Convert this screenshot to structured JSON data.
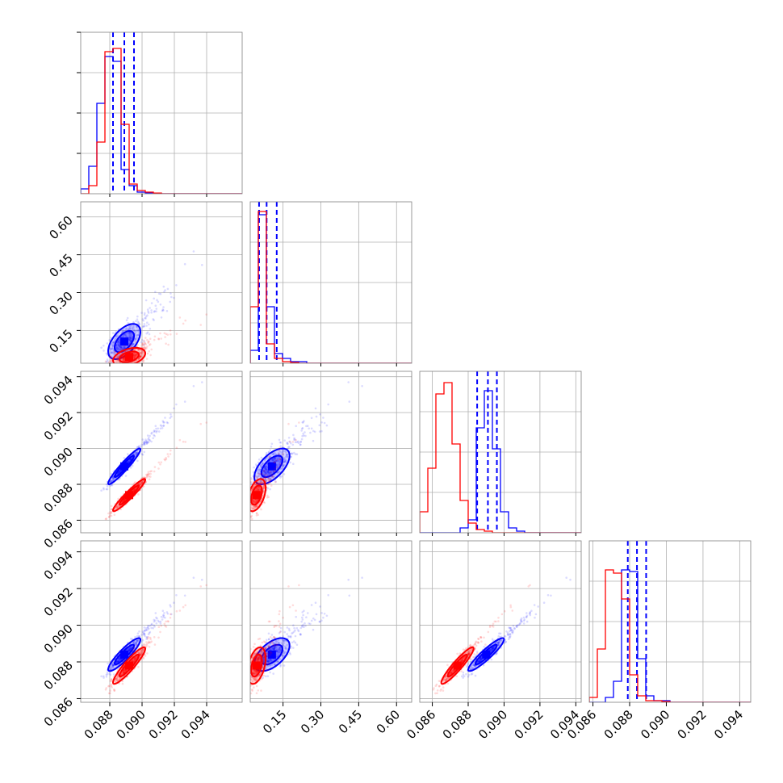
{
  "chart_data": {
    "type": "corner",
    "grid": true,
    "parameters": [
      {
        "index": 0,
        "range": [
          0.0862,
          0.0962
        ],
        "ticks": [
          "0.088",
          "0.090",
          "0.092",
          "0.094"
        ],
        "tick_values": [
          0.088,
          0.09,
          0.092,
          0.094
        ]
      },
      {
        "index": 1,
        "range": [
          0.02,
          0.66
        ],
        "ticks": [
          "0.15",
          "0.30",
          "0.45",
          "0.60"
        ],
        "tick_values": [
          0.15,
          0.3,
          0.45,
          0.6
        ]
      },
      {
        "index": 2,
        "range": [
          0.0853,
          0.0943
        ],
        "ticks": [
          "0.086",
          "0.088",
          "0.090",
          "0.092",
          "0.094"
        ],
        "tick_values": [
          0.086,
          0.088,
          0.09,
          0.092,
          0.094
        ]
      },
      {
        "index": 3,
        "range": [
          0.0858,
          0.0946
        ],
        "ticks": [
          "0.086",
          "0.088",
          "0.090",
          "0.092",
          "0.094"
        ],
        "tick_values": [
          0.086,
          0.088,
          0.09,
          0.092,
          0.094
        ]
      }
    ],
    "series": [
      {
        "color": "#0000ff",
        "means": [
          0.0889,
          0.106,
          0.089,
          0.0884
        ],
        "sds": [
          0.0005,
          0.035,
          0.0005,
          0.00045
        ],
        "corr": [
          [
            1,
            0.55,
            0.95,
            0.9
          ],
          [
            0.55,
            1,
            0.6,
            0.55
          ],
          [
            0.95,
            0.6,
            1,
            0.92
          ],
          [
            0.9,
            0.55,
            0.92,
            1
          ]
        ],
        "quantiles": [
          [
            0.0882,
            0.0889,
            0.0895
          ],
          [
            0.055,
            0.085,
            0.125
          ],
          [
            0.0885,
            0.0891,
            0.0896
          ],
          [
            0.0879,
            0.0884,
            0.0889
          ]
        ],
        "histograms": [
          [
            0.03,
            0.17,
            0.56,
            0.85,
            0.82,
            0.15,
            0.05,
            0.01,
            0.005,
            0.004,
            0,
            0,
            0,
            0,
            0,
            0,
            0,
            0,
            0,
            0
          ],
          [
            0.08,
            0.92,
            0.35,
            0.06,
            0.03,
            0.01,
            0.01,
            0,
            0,
            0,
            0,
            0,
            0,
            0,
            0,
            0,
            0,
            0,
            0,
            0
          ],
          [
            0,
            0,
            0,
            0,
            0,
            0.03,
            0.08,
            0.65,
            0.88,
            0.52,
            0.13,
            0.03,
            0.01,
            0,
            0,
            0,
            0,
            0,
            0,
            0
          ],
          [
            0,
            0,
            0.03,
            0.13,
            0.82,
            0.81,
            0.27,
            0.04,
            0.01,
            0.01,
            0,
            0,
            0,
            0,
            0,
            0,
            0,
            0,
            0,
            0
          ]
        ]
      },
      {
        "color": "#ff0000",
        "means": [
          0.0892,
          0.045,
          0.0874,
          0.0878
        ],
        "sds": [
          0.0005,
          0.018,
          0.00045,
          0.0005
        ],
        "corr": [
          [
            1,
            0.4,
            0.95,
            0.92
          ],
          [
            0.4,
            1,
            0.45,
            0.4
          ],
          [
            0.95,
            0.45,
            1,
            0.93
          ],
          [
            0.92,
            0.4,
            0.93,
            1
          ]
        ],
        "quantiles": [],
        "histograms": [
          [
            0,
            0.05,
            0.32,
            0.88,
            0.9,
            0.43,
            0.06,
            0.02,
            0.01,
            0.004,
            0,
            0,
            0,
            0,
            0,
            0,
            0,
            0,
            0,
            0
          ],
          [
            0.35,
            0.94,
            0.12,
            0.03,
            0.01,
            0.005,
            0,
            0,
            0,
            0,
            0,
            0,
            0,
            0,
            0,
            0,
            0,
            0,
            0,
            0
          ],
          [
            0.13,
            0.4,
            0.86,
            0.93,
            0.55,
            0.2,
            0.06,
            0.02,
            0.01,
            0,
            0,
            0,
            0,
            0,
            0,
            0,
            0,
            0,
            0,
            0
          ],
          [
            0.03,
            0.33,
            0.82,
            0.8,
            0.64,
            0.17,
            0.04,
            0.01,
            0.01,
            0.005,
            0,
            0,
            0,
            0,
            0,
            0,
            0,
            0,
            0,
            0
          ]
        ]
      }
    ]
  }
}
